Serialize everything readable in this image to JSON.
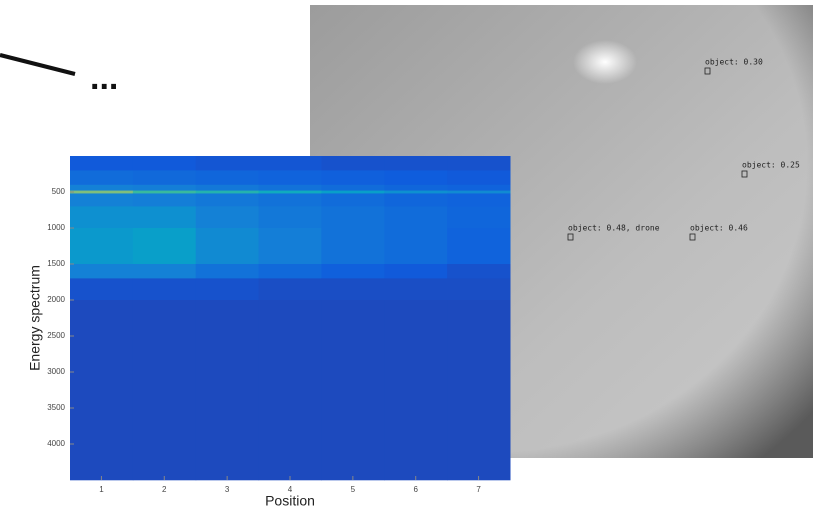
{
  "chart_data": {
    "type": "heatmap",
    "x_label": "Position",
    "y_label": "Energy spectrum",
    "x": [
      1,
      2,
      3,
      4,
      5,
      6,
      7
    ],
    "y_bins": [
      0,
      200,
      400,
      480,
      520,
      700,
      1000,
      1500,
      1700,
      2000,
      4500
    ],
    "z": [
      [
        0.12,
        0.12,
        0.11,
        0.11,
        0.1,
        0.1,
        0.1
      ],
      [
        0.18,
        0.17,
        0.16,
        0.15,
        0.14,
        0.13,
        0.12
      ],
      [
        0.25,
        0.24,
        0.22,
        0.2,
        0.18,
        0.16,
        0.15
      ],
      [
        0.6,
        0.5,
        0.45,
        0.4,
        0.35,
        0.3,
        0.28
      ],
      [
        0.25,
        0.24,
        0.22,
        0.2,
        0.18,
        0.16,
        0.15
      ],
      [
        0.3,
        0.3,
        0.25,
        0.22,
        0.2,
        0.18,
        0.16
      ],
      [
        0.33,
        0.35,
        0.28,
        0.24,
        0.2,
        0.18,
        0.15
      ],
      [
        0.25,
        0.25,
        0.2,
        0.17,
        0.14,
        0.12,
        0.1
      ],
      [
        0.1,
        0.1,
        0.1,
        0.09,
        0.09,
        0.09,
        0.09
      ],
      [
        0.08,
        0.08,
        0.08,
        0.08,
        0.08,
        0.08,
        0.08
      ]
    ],
    "zlim": [
      0,
      1
    ],
    "colormap": [
      "#352a87",
      "#0f5cdd",
      "#1481d6",
      "#06a7c6",
      "#38b99e",
      "#92bf73",
      "#d9ba56",
      "#fcce2e",
      "#f9fb0e"
    ],
    "xlim": [
      0.5,
      7.5
    ],
    "ylim": [
      0,
      4500
    ],
    "y_reversed": true,
    "xticks": [
      1,
      2,
      3,
      4,
      5,
      6,
      7
    ],
    "yticks": [
      500,
      1000,
      1500,
      2000,
      2500,
      3000,
      3500,
      4000
    ]
  },
  "photo": {
    "detections": [
      "object: 0.30",
      "object: 0.25",
      "object: 0.48, drone",
      "object: 0.46"
    ]
  },
  "ellipsis": "..."
}
